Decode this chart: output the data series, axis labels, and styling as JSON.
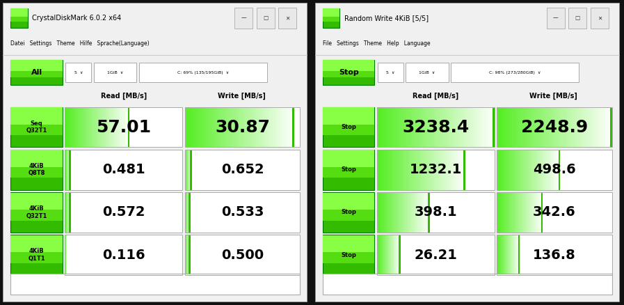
{
  "left_panel": {
    "title": "CrystalDiskMark 6.0.2 x64",
    "menu": "Datei   Settings   Theme   Hilfe   Sprache(Language)",
    "top_button": "All",
    "dd1": "5  ∨",
    "dd2": "1GiB  ∨",
    "dd3": "C: 69% (135/195GiB)  ∨",
    "col_read": "Read [MB/s]",
    "col_write": "Write [MB/s]",
    "rows": [
      {
        "label": "Seq\nQ32T1",
        "read": "57.01",
        "write": "30.87",
        "read_fill": 0.55,
        "write_fill": 0.95
      },
      {
        "label": "4KiB\nQ8T8",
        "read": "0.481",
        "write": "0.652",
        "read_fill": 0.05,
        "write_fill": 0.06
      },
      {
        "label": "4KiB\nQ32T1",
        "read": "0.572",
        "write": "0.533",
        "read_fill": 0.05,
        "write_fill": 0.05
      },
      {
        "label": "4KiB\nQ1T1",
        "read": "0.116",
        "write": "0.500",
        "read_fill": 0.02,
        "write_fill": 0.05
      }
    ]
  },
  "right_panel": {
    "title": "Random Write 4KiB [5/5]",
    "menu": "File   Settings   Theme   Help   Language",
    "top_button": "Stop",
    "dd1": "5  ∨",
    "dd2": "1GiB  ∨",
    "dd3": "C: 98% (273/280GiB)  ∨",
    "col_read": "Read [MB/s]",
    "col_write": "Write [MB/s]",
    "rows": [
      {
        "label": "Stop",
        "read": "3238.4",
        "write": "2248.9",
        "read_fill": 1.0,
        "write_fill": 1.0
      },
      {
        "label": "Stop",
        "read": "1232.1",
        "write": "498.6",
        "read_fill": 0.75,
        "write_fill": 0.55
      },
      {
        "label": "Stop",
        "read": "398.1",
        "write": "342.6",
        "read_fill": 0.45,
        "write_fill": 0.4
      },
      {
        "label": "Stop",
        "read": "26.21",
        "write": "136.8",
        "read_fill": 0.2,
        "write_fill": 0.2
      }
    ]
  },
  "bg_outer": "#111111",
  "green_btn": "#44dd00",
  "green_btn_light": "#88ff44",
  "green_cell": "#55ee22",
  "green_cell_light": "#aaffaa",
  "green_bar": "#33cc00",
  "cell_border": "#aaaaaa",
  "window_bg": "#f0f0f0",
  "white": "#ffffff",
  "black": "#000000",
  "title_fontsize": 7,
  "menu_fontsize": 5.5,
  "btn_fontsize": 8,
  "hdr_fontsize": 7,
  "val_fontsize_row0": 18,
  "val_fontsize_other": 14,
  "lbl_fontsize": 6
}
